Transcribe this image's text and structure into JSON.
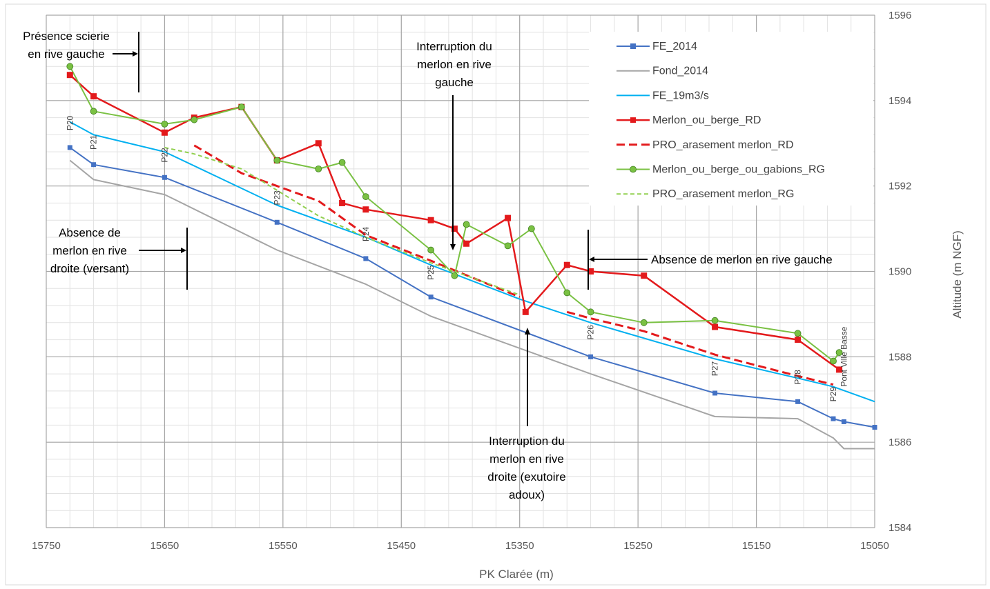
{
  "chart_data": {
    "type": "line",
    "xlabel": "PK Clarée (m)",
    "ylabel": "Altitude (m NGF)",
    "xlim": [
      15750,
      15050
    ],
    "ylim": [
      1584,
      1596
    ],
    "x_ticks": [
      15750,
      15650,
      15550,
      15450,
      15350,
      15250,
      15150,
      15050
    ],
    "y_ticks": [
      1584,
      1586,
      1588,
      1590,
      1592,
      1594,
      1596
    ],
    "x_reversed": true,
    "grid": true,
    "legend_position": "top-right",
    "series": [
      {
        "name": "FE_2014",
        "color": "#4472c4",
        "dash": "solid",
        "marker": "square",
        "width": 2,
        "points": [
          [
            15730,
            1592.9
          ],
          [
            15710,
            1592.5
          ],
          [
            15650,
            1592.2
          ],
          [
            15555,
            1591.15
          ],
          [
            15480,
            1590.3
          ],
          [
            15425,
            1589.4
          ],
          [
            15290,
            1588
          ],
          [
            15185,
            1587.15
          ],
          [
            15115,
            1586.95
          ],
          [
            15085,
            1586.55
          ],
          [
            15076,
            1586.48
          ],
          [
            15050,
            1586.35
          ]
        ]
      },
      {
        "name": "Fond_2014",
        "color": "#a5a5a5",
        "dash": "solid",
        "marker": "none",
        "width": 2,
        "points": [
          [
            15730,
            1592.6
          ],
          [
            15710,
            1592.15
          ],
          [
            15650,
            1591.8
          ],
          [
            15555,
            1590.5
          ],
          [
            15480,
            1589.7
          ],
          [
            15425,
            1588.95
          ],
          [
            15290,
            1587.6
          ],
          [
            15185,
            1586.6
          ],
          [
            15115,
            1586.55
          ],
          [
            15085,
            1586.1
          ],
          [
            15076,
            1585.85
          ],
          [
            15050,
            1585.85
          ]
        ]
      },
      {
        "name": "FE_19m3/s",
        "color": "#00b0f0",
        "dash": "solid",
        "marker": "none",
        "width": 2,
        "points": [
          [
            15730,
            1593.5
          ],
          [
            15710,
            1593.2
          ],
          [
            15650,
            1592.8
          ],
          [
            15555,
            1591.55
          ],
          [
            15480,
            1590.8
          ],
          [
            15425,
            1590.15
          ],
          [
            15350,
            1589.35
          ],
          [
            15290,
            1588.8
          ],
          [
            15185,
            1587.95
          ],
          [
            15115,
            1587.5
          ],
          [
            15085,
            1587.3
          ],
          [
            15050,
            1586.95
          ]
        ]
      },
      {
        "name": "Merlon_ou_berge_RD",
        "color": "#e31a1c",
        "dash": "solid",
        "marker": "square",
        "width": 2.5,
        "points": [
          [
            15730,
            1594.6
          ],
          [
            15710,
            1594.1
          ],
          [
            15650,
            1593.25
          ],
          [
            15625,
            1593.6
          ],
          [
            15585,
            1593.85
          ],
          [
            15555,
            1592.6
          ],
          [
            15520,
            1593
          ],
          [
            15500,
            1591.6
          ],
          [
            15480,
            1591.45
          ],
          [
            15425,
            1591.2
          ],
          [
            15405,
            1591
          ],
          [
            15395,
            1590.65
          ],
          [
            15360,
            1591.25
          ],
          [
            15345,
            1589.05
          ],
          [
            15310,
            1590.15
          ],
          [
            15290,
            1590
          ],
          [
            15245,
            1589.9
          ],
          [
            15185,
            1588.7
          ],
          [
            15115,
            1588.4
          ],
          [
            15080,
            1587.7
          ]
        ]
      },
      {
        "name": "PRO_arasement merlon_RD",
        "color": "#e31a1c",
        "dash": "long-dash",
        "marker": "none",
        "width": 3,
        "points": [
          [
            15625,
            1592.95
          ],
          [
            15585,
            1592.3
          ],
          [
            15555,
            1592
          ],
          [
            15520,
            1591.65
          ],
          [
            15480,
            1590.85
          ],
          [
            15425,
            1590.25
          ],
          [
            15350,
            1589.4
          ]
        ]
      },
      {
        "name": "PRO_arasement merlon_RD",
        "color": "#e31a1c",
        "dash": "long-dash",
        "marker": "none",
        "width": 3,
        "points": [
          [
            15310,
            1589.05
          ],
          [
            15290,
            1588.9
          ],
          [
            15245,
            1588.6
          ],
          [
            15185,
            1588.05
          ],
          [
            15115,
            1587.55
          ],
          [
            15085,
            1587.35
          ]
        ]
      },
      {
        "name": "Merlon_ou_berge_ou_gabions_RG",
        "color": "#7ac143",
        "dash": "solid",
        "marker": "circle",
        "width": 2,
        "points": [
          [
            15730,
            1594.8
          ],
          [
            15710,
            1593.75
          ],
          [
            15650,
            1593.45
          ],
          [
            15625,
            1593.55
          ],
          [
            15585,
            1593.85
          ],
          [
            15555,
            1592.6
          ],
          [
            15520,
            1592.4
          ],
          [
            15500,
            1592.55
          ],
          [
            15480,
            1591.75
          ],
          [
            15425,
            1590.5
          ],
          [
            15405,
            1589.9
          ],
          [
            15395,
            1591.1
          ],
          [
            15360,
            1590.6
          ],
          [
            15340,
            1591
          ],
          [
            15310,
            1589.5
          ],
          [
            15290,
            1589.05
          ],
          [
            15245,
            1588.8
          ],
          [
            15185,
            1588.85
          ],
          [
            15115,
            1588.55
          ],
          [
            15085,
            1587.9
          ],
          [
            15080,
            1588.1
          ]
        ]
      },
      {
        "name": "PRO_arasement merlon_RG",
        "color": "#92d050",
        "dash": "short-dash",
        "marker": "none",
        "width": 2,
        "points": [
          [
            15650,
            1592.9
          ],
          [
            15625,
            1592.75
          ],
          [
            15585,
            1592.4
          ],
          [
            15555,
            1591.9
          ],
          [
            15520,
            1591.3
          ],
          [
            15480,
            1590.8
          ],
          [
            15425,
            1590.2
          ],
          [
            15405,
            1590
          ],
          [
            15350,
            1589.45
          ]
        ]
      }
    ],
    "profile_labels": [
      {
        "label": "P20",
        "x": 15730,
        "y": 1593.3
      },
      {
        "label": "P21",
        "x": 15710,
        "y": 1592.85
      },
      {
        "label": "P22",
        "x": 15650,
        "y": 1592.55
      },
      {
        "label": "P23",
        "x": 15555,
        "y": 1591.55
      },
      {
        "label": "P24",
        "x": 15480,
        "y": 1590.7
      },
      {
        "label": "P25",
        "x": 15425,
        "y": 1589.8
      },
      {
        "label": "P26",
        "x": 15290,
        "y": 1588.4
      },
      {
        "label": "P27",
        "x": 15185,
        "y": 1587.55
      },
      {
        "label": "P28",
        "x": 15115,
        "y": 1587.35
      },
      {
        "label": "P29",
        "x": 15085,
        "y": 1586.95
      },
      {
        "label": "Pont Ville Basse",
        "x": 15076,
        "y": 1587.3
      }
    ],
    "annotations": [
      {
        "id": "scierie",
        "lines": [
          "Présence scierie",
          "en rive gauche"
        ]
      },
      {
        "id": "interruption-rg",
        "lines": [
          "Interruption du",
          "merlon en rive",
          "gauche"
        ]
      },
      {
        "id": "absence-rd",
        "lines": [
          "Absence de",
          "merlon en rive",
          "droite (versant)"
        ]
      },
      {
        "id": "absence-rg",
        "lines": [
          "Absence de merlon en rive gauche"
        ]
      },
      {
        "id": "interruption-rd",
        "lines": [
          "Interruption du",
          "merlon en rive",
          "droite (exutoire",
          "adoux)"
        ]
      }
    ]
  }
}
